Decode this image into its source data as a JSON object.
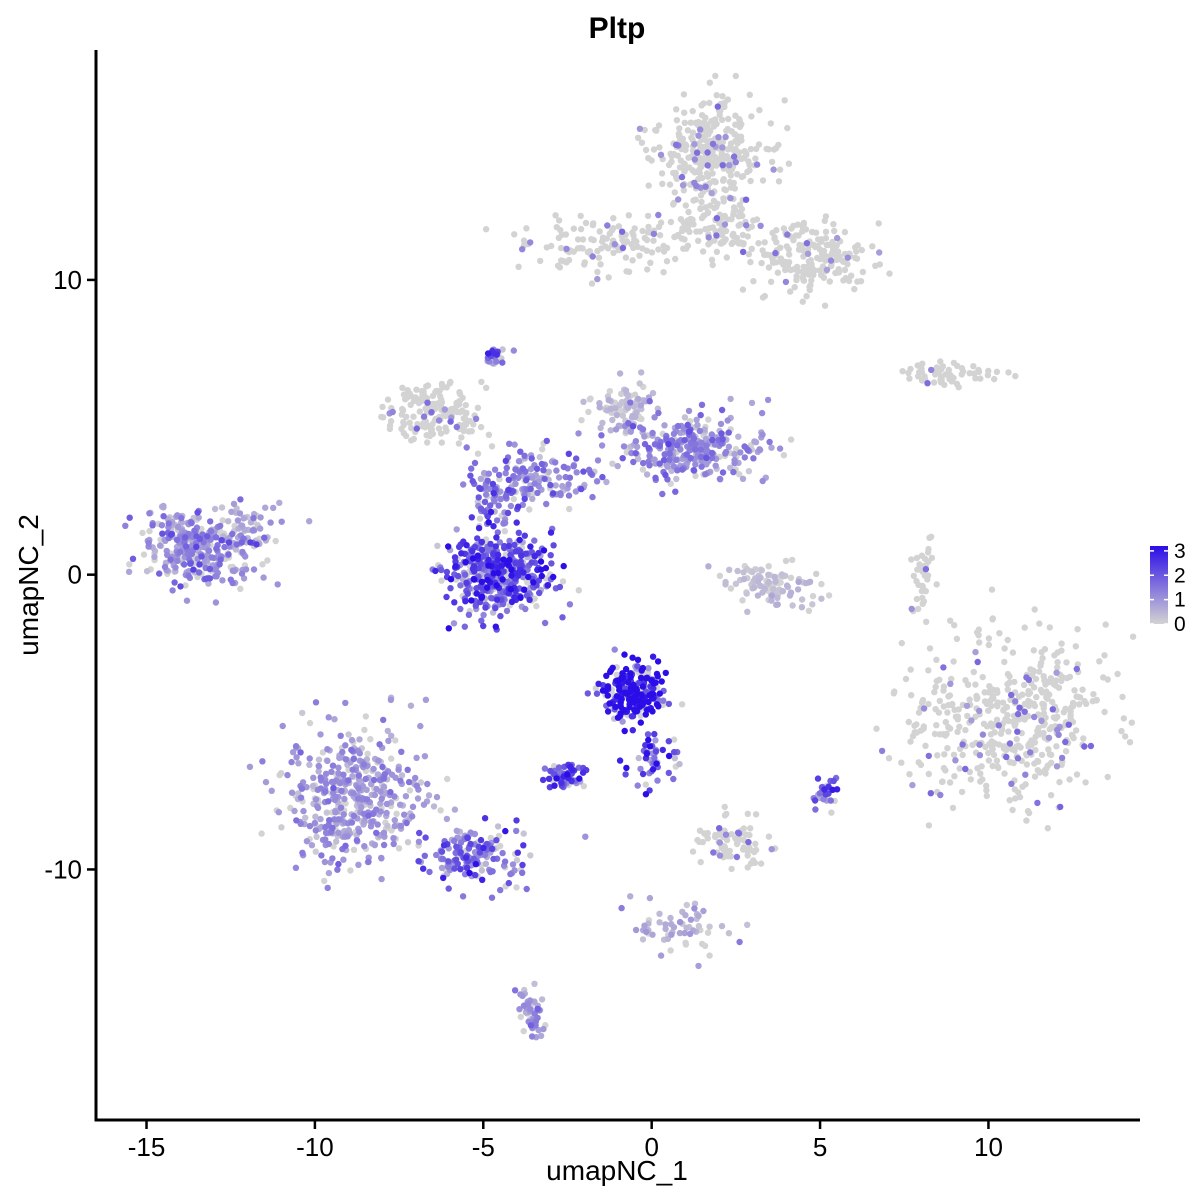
{
  "chart_data": {
    "type": "scatter",
    "title": "Pltp",
    "xlabel": "umapNC_1",
    "ylabel": "umapNC_2",
    "xlim": [
      -16.5,
      14.5
    ],
    "ylim": [
      -18.5,
      17.8
    ],
    "x_ticks": [
      -15,
      -10,
      -5,
      0,
      5,
      10
    ],
    "x_tick_labels": [
      "-15",
      "-10",
      "-5",
      "0",
      "5",
      "10"
    ],
    "y_ticks": [
      -10,
      0,
      10
    ],
    "y_tick_labels": [
      "-10",
      "0",
      "10"
    ],
    "grid": false,
    "legend_position": "right",
    "color_scale": {
      "low_color": "#d3d3d3",
      "high_color": "#2b0de8",
      "min": 0,
      "max": 3.2,
      "ticks": [
        0,
        1,
        2,
        3
      ],
      "tick_labels": [
        "0",
        "1",
        "2",
        "3"
      ]
    },
    "clusters": [
      {
        "id": "top-large-cluster",
        "x": 1.7,
        "y": 14.3,
        "spread_x": 1.0,
        "spread_y": 1.1,
        "points": 340,
        "expression": 0.08
      },
      {
        "id": "top-right-lobe",
        "x": 4.8,
        "y": 10.8,
        "spread_x": 1.1,
        "spread_y": 0.8,
        "points": 200,
        "expression": 0.1
      },
      {
        "id": "top-left-arm",
        "x": -1.5,
        "y": 11.3,
        "spread_x": 1.7,
        "spread_y": 0.6,
        "points": 140,
        "expression": 0.1
      },
      {
        "id": "top-mid-bridge",
        "x": 2.0,
        "y": 11.8,
        "spread_x": 0.7,
        "spread_y": 0.7,
        "points": 100,
        "expression": 0.1
      },
      {
        "id": "right-thin-strip",
        "x": 9.0,
        "y": 6.8,
        "spread_x": 1.0,
        "spread_y": 0.25,
        "points": 60,
        "expression": 0.05
      },
      {
        "id": "left-small-cluster",
        "x": -13.5,
        "y": 1.0,
        "spread_x": 1.1,
        "spread_y": 0.8,
        "points": 320,
        "expression": 1.1
      },
      {
        "id": "left-small-tail",
        "x": -12.0,
        "y": 1.6,
        "spread_x": 0.5,
        "spread_y": 0.5,
        "points": 50,
        "expression": 0.6
      },
      {
        "id": "central-ring",
        "x": -4.5,
        "y": 0.0,
        "spread_x": 1.0,
        "spread_y": 0.8,
        "points": 450,
        "expression": 1.9
      },
      {
        "id": "central-upper-left",
        "x": -6.5,
        "y": 5.5,
        "spread_x": 0.9,
        "spread_y": 0.6,
        "points": 170,
        "expression": 0.1
      },
      {
        "id": "central-right-arm",
        "x": 1.2,
        "y": 4.3,
        "spread_x": 1.4,
        "spread_y": 0.7,
        "points": 300,
        "expression": 1.1
      },
      {
        "id": "central-right-knob",
        "x": -0.8,
        "y": 5.7,
        "spread_x": 0.6,
        "spread_y": 0.5,
        "points": 80,
        "expression": 0.4
      },
      {
        "id": "central-bridge",
        "x": -3.5,
        "y": 3.3,
        "spread_x": 1.2,
        "spread_y": 0.6,
        "points": 150,
        "expression": 1.2
      },
      {
        "id": "central-stalk",
        "x": -4.8,
        "y": 2.5,
        "spread_x": 0.4,
        "spread_y": 0.7,
        "points": 60,
        "expression": 1.5
      },
      {
        "id": "tiny-top-cluster",
        "x": -4.7,
        "y": 7.4,
        "spread_x": 0.2,
        "spread_y": 0.2,
        "points": 25,
        "expression": 1.8
      },
      {
        "id": "small-cluster-near-zero",
        "x": 3.5,
        "y": -0.3,
        "spread_x": 1.0,
        "spread_y": 0.5,
        "points": 100,
        "expression": 0.3
      },
      {
        "id": "right-large-cluster",
        "x": 10.7,
        "y": -5.0,
        "spread_x": 1.8,
        "spread_y": 1.7,
        "points": 480,
        "expression": 0.12
      },
      {
        "id": "center-dense-cluster",
        "x": -0.5,
        "y": -4.0,
        "spread_x": 0.6,
        "spread_y": 0.6,
        "points": 230,
        "expression": 2.9
      },
      {
        "id": "center-dense-tail",
        "x": 0.0,
        "y": -6.3,
        "spread_x": 0.5,
        "spread_y": 0.6,
        "points": 50,
        "expression": 2.1
      },
      {
        "id": "center-small-blob",
        "x": -2.6,
        "y": -6.9,
        "spread_x": 0.4,
        "spread_y": 0.3,
        "points": 60,
        "expression": 1.9
      },
      {
        "id": "bottom-left-cluster",
        "x": -8.8,
        "y": -7.5,
        "spread_x": 1.3,
        "spread_y": 1.4,
        "points": 450,
        "expression": 0.9
      },
      {
        "id": "bottom-left-tail",
        "x": -5.3,
        "y": -9.5,
        "spread_x": 1.1,
        "spread_y": 0.6,
        "points": 160,
        "expression": 1.6
      },
      {
        "id": "bottom-small-cluster",
        "x": -3.6,
        "y": -14.8,
        "spread_x": 0.25,
        "spread_y": 0.6,
        "points": 50,
        "expression": 0.9
      },
      {
        "id": "bottom-mid-cluster",
        "x": 2.4,
        "y": -9.2,
        "spread_x": 0.7,
        "spread_y": 0.5,
        "points": 80,
        "expression": 0.1
      },
      {
        "id": "bottom-branch",
        "x": 0.8,
        "y": -12.0,
        "spread_x": 1.0,
        "spread_y": 0.6,
        "points": 60,
        "expression": 0.6
      },
      {
        "id": "small-right-blob",
        "x": 5.1,
        "y": -7.4,
        "spread_x": 0.2,
        "spread_y": 0.3,
        "points": 30,
        "expression": 1.6
      },
      {
        "id": "right-thin-vertical",
        "x": 8.1,
        "y": 0.0,
        "spread_x": 0.2,
        "spread_y": 0.9,
        "points": 35,
        "expression": 0.2
      }
    ]
  }
}
